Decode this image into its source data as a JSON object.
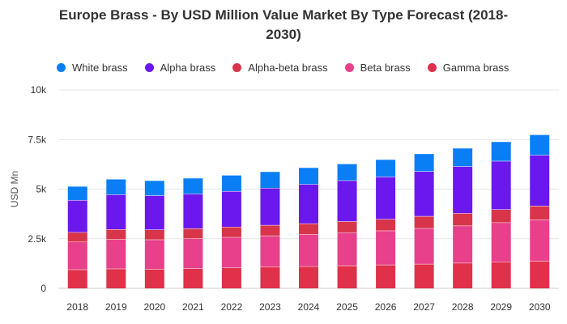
{
  "chart_data": {
    "type": "bar",
    "stacked": true,
    "title_line1": "Europe Brass - By USD Million Value Market By Type Forecast (2018-",
    "title_line2": "2030)",
    "ylabel": "USD Mn",
    "xlabel": "",
    "ylim": [
      0,
      10000
    ],
    "yticks": [
      {
        "value": 0,
        "label": "0"
      },
      {
        "value": 2500,
        "label": "2.5k"
      },
      {
        "value": 5000,
        "label": "5k"
      },
      {
        "value": 7500,
        "label": "7.5k"
      },
      {
        "value": 10000,
        "label": "10k"
      }
    ],
    "grid": true,
    "legend_position": "top-left",
    "categories": [
      "2018",
      "2019",
      "2020",
      "2021",
      "2022",
      "2023",
      "2024",
      "2025",
      "2026",
      "2027",
      "2028",
      "2029",
      "2030"
    ],
    "series": [
      {
        "name": "Gamma brass",
        "color": "#e0304a",
        "values": [
          950,
          990,
          980,
          1000,
          1040,
          1080,
          1110,
          1150,
          1190,
          1230,
          1280,
          1340,
          1390
        ]
      },
      {
        "name": "Beta brass",
        "color": "#e8408a",
        "values": [
          1400,
          1480,
          1480,
          1510,
          1540,
          1580,
          1620,
          1670,
          1720,
          1800,
          1880,
          1980,
          2080
        ]
      },
      {
        "name": "Alpha-beta brass",
        "color": "#d8354a",
        "values": [
          480,
          510,
          500,
          510,
          520,
          530,
          540,
          560,
          580,
          610,
          630,
          660,
          690
        ]
      },
      {
        "name": "Alpha brass",
        "color": "#6b18ee",
        "values": [
          1620,
          1750,
          1720,
          1750,
          1800,
          1870,
          1980,
          2060,
          2140,
          2260,
          2360,
          2440,
          2560
        ]
      },
      {
        "name": "White brass",
        "color": "#0a7ef5",
        "values": [
          700,
          780,
          760,
          790,
          810,
          830,
          840,
          840,
          870,
          890,
          920,
          980,
          1030
        ]
      }
    ],
    "legend_order": [
      "White brass",
      "Alpha brass",
      "Alpha-beta brass",
      "Beta brass",
      "Gamma brass"
    ]
  }
}
